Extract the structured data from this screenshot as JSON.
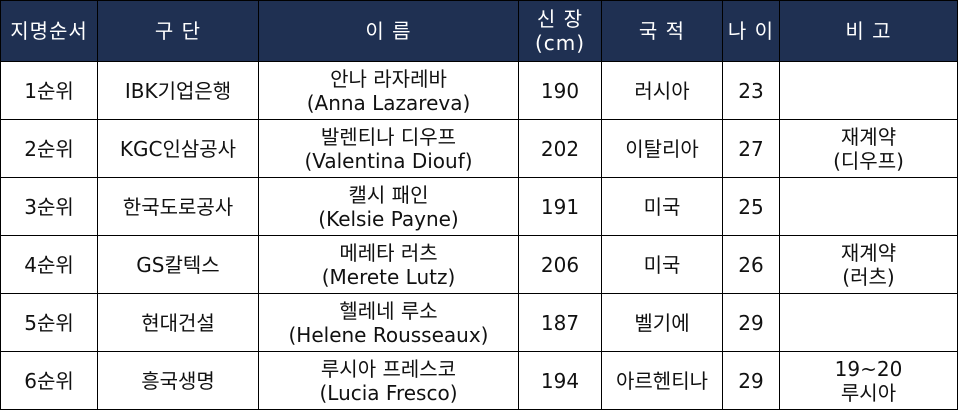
{
  "header": {
    "order": "지명순서",
    "team": "구 단",
    "name": "이 름",
    "height_line1": "신 장",
    "height_line2": "(cm)",
    "country": "국 적",
    "age": "나 이",
    "note": "비 고"
  },
  "rows": [
    {
      "order": "1순위",
      "team": "IBK기업은행",
      "name_kr": "안나 라자레바",
      "name_en": "(Anna Lazareva)",
      "height": "190",
      "country": "러시아",
      "age": "23",
      "note_line1": "",
      "note_line2": ""
    },
    {
      "order": "2순위",
      "team": "KGC인삼공사",
      "name_kr": "발렌티나 디우프",
      "name_en": "(Valentina Diouf)",
      "height": "202",
      "country": "이탈리아",
      "age": "27",
      "note_line1": "재계약",
      "note_line2": "(디우프)"
    },
    {
      "order": "3순위",
      "team": "한국도로공사",
      "name_kr": "캘시 패인",
      "name_en": "(Kelsie Payne)",
      "height": "191",
      "country": "미국",
      "age": "25",
      "note_line1": "",
      "note_line2": ""
    },
    {
      "order": "4순위",
      "team": "GS칼텍스",
      "name_kr": "메레타 러츠",
      "name_en": "(Merete Lutz)",
      "height": "206",
      "country": "미국",
      "age": "26",
      "note_line1": "재계약",
      "note_line2": "(러츠)"
    },
    {
      "order": "5순위",
      "team": "현대건설",
      "name_kr": "헬레네 루소",
      "name_en": "(Helene Rousseaux)",
      "height": "187",
      "country": "벨기에",
      "age": "29",
      "note_line1": "",
      "note_line2": ""
    },
    {
      "order": "6순위",
      "team": "흥국생명",
      "name_kr": "루시아 프레스코",
      "name_en": "(Lucia Fresco)",
      "height": "194",
      "country": "아르헨티나",
      "age": "29",
      "note_line1": "19~20",
      "note_line2": "루시아"
    }
  ],
  "colors": {
    "header_bg": "#1f3052",
    "header_text": "#ffffff",
    "border": "#000000"
  }
}
